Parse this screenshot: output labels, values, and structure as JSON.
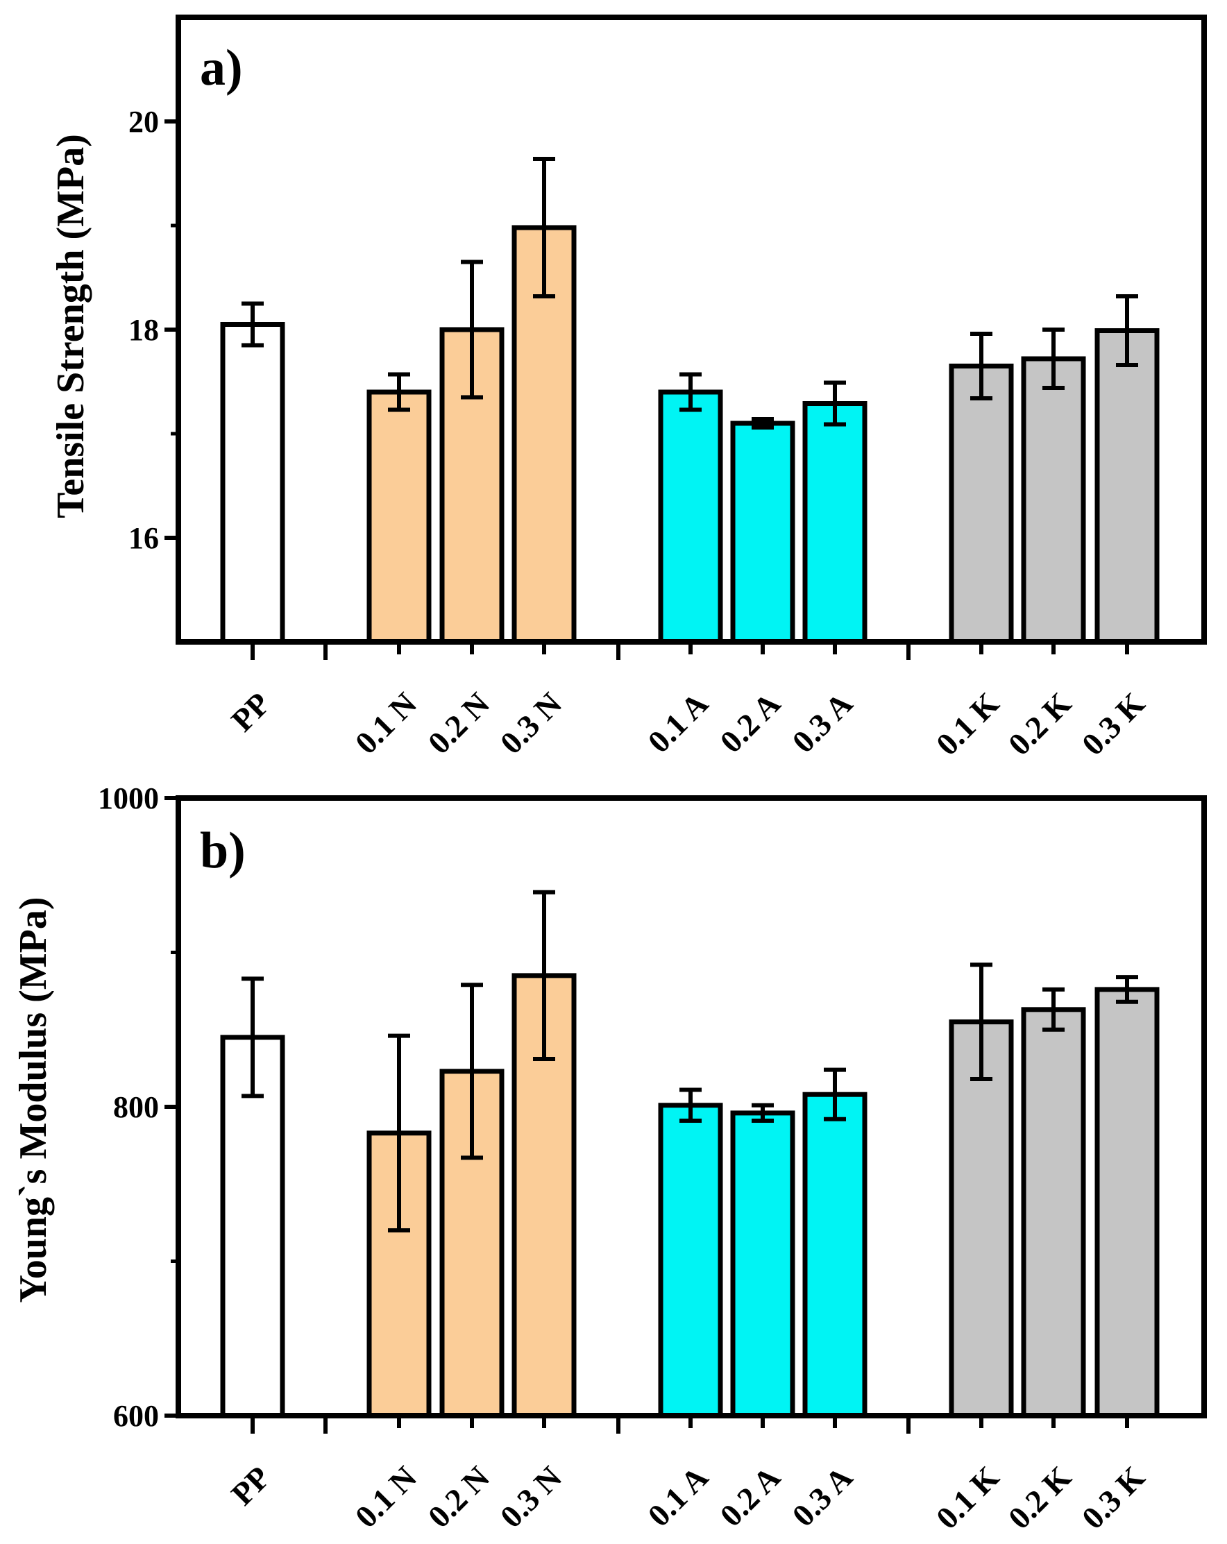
{
  "chart_data": [
    {
      "type": "bar",
      "panel_label": "a)",
      "ylabel": "Tensile Strength (MPa)",
      "xlabel": "",
      "ylim": [
        15.0,
        21.0
      ],
      "yticks": [
        16,
        18,
        20
      ],
      "categories": [
        "PP",
        "0.1 N",
        "0.2 N",
        "0.3 N",
        "0.1 A",
        "0.2 A",
        "0.3 A",
        "0.1 K",
        "0.2 K",
        "0.3 K"
      ],
      "values": [
        18.05,
        17.4,
        18.0,
        18.98,
        17.4,
        17.1,
        17.29,
        17.65,
        17.72,
        17.99
      ],
      "errors": [
        0.2,
        0.17,
        0.65,
        0.66,
        0.17,
        0.04,
        0.2,
        0.31,
        0.28,
        0.33
      ],
      "groups": [
        "pp",
        "n",
        "n",
        "n",
        "a",
        "a",
        "a",
        "k",
        "k",
        "k"
      ],
      "grid": false
    },
    {
      "type": "bar",
      "panel_label": "b)",
      "ylabel": "Young`s Modulus (MPa)",
      "xlabel": "",
      "ylim": [
        600,
        1000
      ],
      "yticks": [
        600,
        800,
        1000
      ],
      "categories": [
        "PP",
        "0.1 N",
        "0.2 N",
        "0.3 N",
        "0.1 A",
        "0.2 A",
        "0.3 A",
        "0.1 K",
        "0.2 K",
        "0.3 K"
      ],
      "values": [
        845,
        783,
        823,
        885,
        801,
        796,
        808,
        855,
        863,
        876
      ],
      "errors": [
        38,
        63,
        56,
        54,
        10,
        5,
        16,
        37,
        13,
        8
      ],
      "groups": [
        "pp",
        "n",
        "n",
        "n",
        "a",
        "a",
        "a",
        "k",
        "k",
        "k"
      ],
      "grid": false
    }
  ],
  "colors": {
    "pp": "#ffffff",
    "n": "#fbcd98",
    "a": "#00f4f4",
    "k": "#c5c5c5",
    "stroke": "#000000"
  }
}
